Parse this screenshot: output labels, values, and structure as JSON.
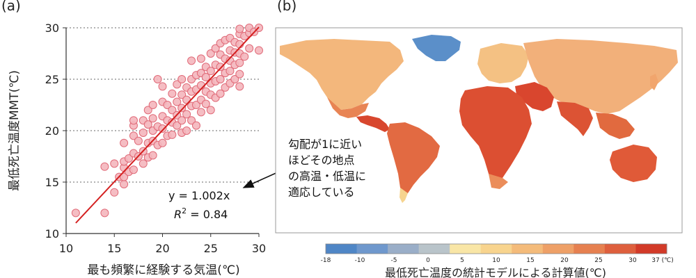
{
  "panel_labels": {
    "a": "(a)",
    "b": "(b)"
  },
  "chart_data": [
    {
      "type": "scatter",
      "xlabel": "最も頻繁に経験する気温(℃)",
      "ylabel": "最低死亡温度MMT(℃)",
      "xlim": [
        10,
        30
      ],
      "ylim": [
        10,
        30
      ],
      "xticks": [
        10,
        15,
        20,
        25,
        30
      ],
      "yticks": [
        10,
        15,
        20,
        25,
        30
      ],
      "grid": "horizontal-dotted",
      "marker_color": "#f4b6bd",
      "marker_edge": "#e06a78",
      "fit": {
        "slope": 1.002,
        "intercept": 0,
        "x_range": [
          11,
          30
        ],
        "color": "#d42020"
      },
      "equation": "y = 1.002x",
      "r2_label": "R",
      "r2_sup": "2",
      "r2_value": " = 0.84",
      "points": [
        [
          11,
          12
        ],
        [
          14,
          12
        ],
        [
          14,
          16.5
        ],
        [
          15,
          14
        ],
        [
          15,
          16.8
        ],
        [
          15.5,
          15.5
        ],
        [
          16,
          14.8
        ],
        [
          16,
          15.5
        ],
        [
          16,
          16.4
        ],
        [
          16,
          17
        ],
        [
          16,
          18.8
        ],
        [
          16.5,
          16
        ],
        [
          16.5,
          17.3
        ],
        [
          17,
          16.2
        ],
        [
          17,
          17.8
        ],
        [
          17,
          19.5
        ],
        [
          17,
          20.5
        ],
        [
          17,
          21
        ],
        [
          17.5,
          17.5
        ],
        [
          17.5,
          19
        ],
        [
          18,
          16.8
        ],
        [
          18,
          18
        ],
        [
          18,
          19.8
        ],
        [
          18,
          21
        ],
        [
          18.5,
          17.4
        ],
        [
          18.5,
          18.8
        ],
        [
          18.5,
          20.6
        ],
        [
          18.5,
          22
        ],
        [
          19,
          17.6
        ],
        [
          19,
          19
        ],
        [
          19,
          20
        ],
        [
          19,
          21.2
        ],
        [
          19,
          22.5
        ],
        [
          19.5,
          18.6
        ],
        [
          19.5,
          20.4
        ],
        [
          19.5,
          25
        ],
        [
          20,
          18.8
        ],
        [
          20,
          20.2
        ],
        [
          20,
          21.4
        ],
        [
          20,
          22.8
        ],
        [
          20,
          24.3
        ],
        [
          20.5,
          19.5
        ],
        [
          20.5,
          21
        ],
        [
          20.5,
          22.5
        ],
        [
          21,
          19.6
        ],
        [
          21,
          20.8
        ],
        [
          21,
          22
        ],
        [
          21,
          23.6
        ],
        [
          21.5,
          20.5
        ],
        [
          21.5,
          21.5
        ],
        [
          21.5,
          22.8
        ],
        [
          21.5,
          24.5
        ],
        [
          22,
          19.8
        ],
        [
          22,
          21
        ],
        [
          22,
          22.2
        ],
        [
          22,
          23.5
        ],
        [
          22,
          25
        ],
        [
          22.5,
          21.6
        ],
        [
          22.5,
          23
        ],
        [
          22.5,
          24.2
        ],
        [
          22.5,
          20
        ],
        [
          23,
          21
        ],
        [
          23,
          22.4
        ],
        [
          23,
          23.8
        ],
        [
          23,
          25
        ],
        [
          23,
          26.8
        ],
        [
          23.5,
          20.5
        ],
        [
          23.5,
          22.5
        ],
        [
          23.5,
          24
        ],
        [
          23.5,
          25.4
        ],
        [
          24,
          21.8
        ],
        [
          24,
          23
        ],
        [
          24,
          24.4
        ],
        [
          24,
          25.6
        ],
        [
          24,
          27
        ],
        [
          24.5,
          22.6
        ],
        [
          24.5,
          23.8
        ],
        [
          24.5,
          25.2
        ],
        [
          24.5,
          26.2
        ],
        [
          25,
          22
        ],
        [
          25,
          23.5
        ],
        [
          25,
          24.6
        ],
        [
          25,
          25.8
        ],
        [
          25,
          27.5
        ],
        [
          25.5,
          23.2
        ],
        [
          25.5,
          24.8
        ],
        [
          25.5,
          26.4
        ],
        [
          25.5,
          28
        ],
        [
          26,
          23.6
        ],
        [
          26,
          25
        ],
        [
          26,
          26.2
        ],
        [
          26,
          27.4
        ],
        [
          26,
          28.5
        ],
        [
          26.5,
          24.2
        ],
        [
          26.5,
          25.6
        ],
        [
          26.5,
          27
        ],
        [
          26.5,
          28.8
        ],
        [
          27,
          24.6
        ],
        [
          27,
          25.8
        ],
        [
          27,
          26.8
        ],
        [
          27,
          27.8
        ],
        [
          27,
          29
        ],
        [
          27.5,
          25
        ],
        [
          27.5,
          26.4
        ],
        [
          27.5,
          27.6
        ],
        [
          27.5,
          28.6
        ],
        [
          28,
          24.3
        ],
        [
          28,
          25.5
        ],
        [
          28,
          26.6
        ],
        [
          28,
          27.5
        ],
        [
          28,
          28.4
        ],
        [
          28,
          29.4
        ],
        [
          28,
          29.9
        ],
        [
          28.5,
          27.2
        ],
        [
          28.5,
          29.2
        ],
        [
          29,
          28
        ],
        [
          29,
          29.5
        ],
        [
          29,
          30
        ],
        [
          29.5,
          29.6
        ],
        [
          30,
          27.8
        ],
        [
          30,
          30
        ]
      ]
    },
    {
      "type": "heatmap",
      "xlabel": "最低死亡温度の統計モデルによる計算値(℃)",
      "colorbar_ticks": [
        "-18",
        "-10",
        "-5",
        "0",
        "5",
        "10",
        "15",
        "20",
        "25",
        "30",
        "37 (℃)"
      ],
      "colorbar_colors": [
        "#4f86c6",
        "#6f98cd",
        "#9aaec8",
        "#b9c4ca",
        "#f9e6a6",
        "#f8d48e",
        "#f4bb7a",
        "#eea067",
        "#e68050",
        "#de5f3d",
        "#d23a28"
      ]
    }
  ],
  "annotation": {
    "lines": [
      "勾配が1に近い",
      "ほどその地点",
      "の高温・低温に",
      "適応している"
    ]
  }
}
